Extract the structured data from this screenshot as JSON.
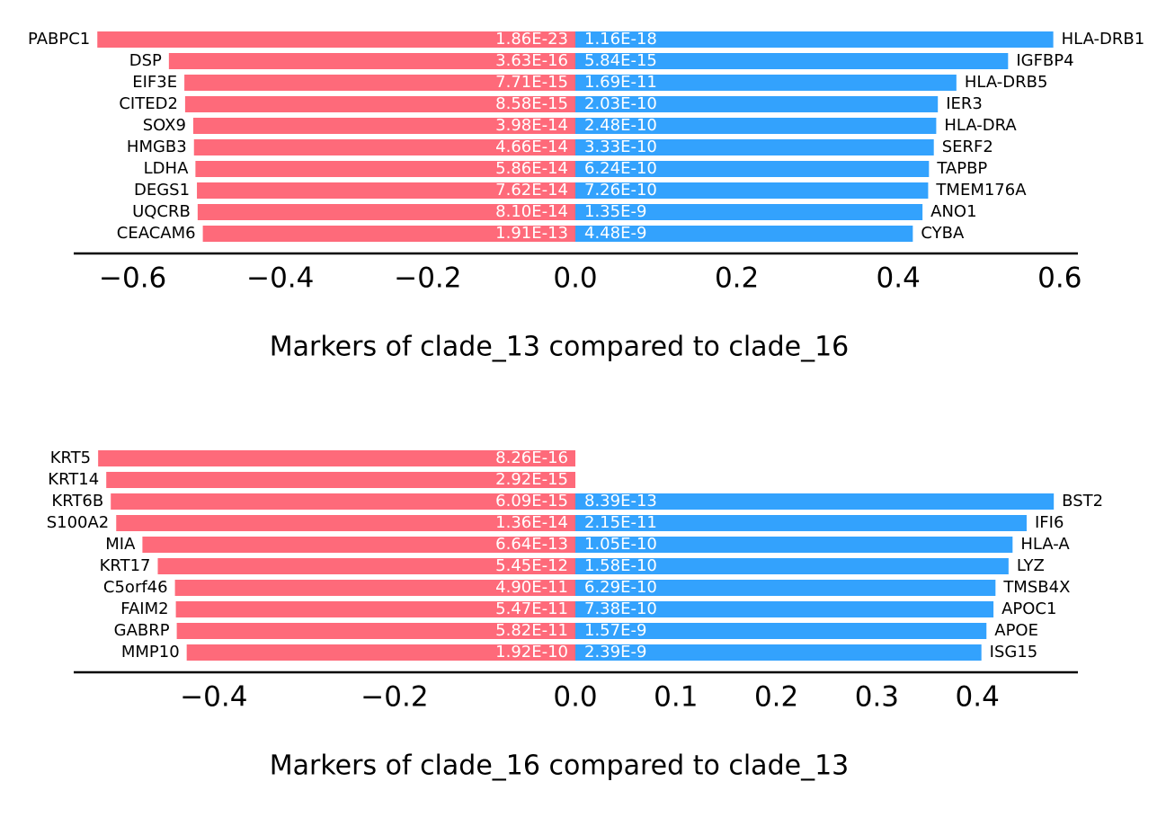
{
  "chart_data": [
    {
      "type": "diverging-bar",
      "title": "Markers of clade_13 compared to clade_16",
      "series": [
        {
          "color": "#fe6a7a",
          "xlim": [
            -0.68,
            0
          ],
          "xticks": [
            {
              "value": -0.6,
              "label": "−0.6"
            },
            {
              "value": -0.4,
              "label": "−0.4"
            },
            {
              "value": -0.2,
              "label": "−0.2"
            },
            {
              "value": 0,
              "label": "0.0"
            }
          ],
          "labels": [
            "PABPC1",
            "DSP",
            "EIF3E",
            "CITED2",
            "SOX9",
            "HMGB3",
            "LDHA",
            "DEGS1",
            "UQCRB",
            "CEACAM6"
          ],
          "values": [
            -0.648,
            -0.551,
            -0.53,
            -0.529,
            -0.518,
            -0.517,
            -0.515,
            -0.513,
            -0.512,
            -0.505
          ],
          "pvalue_labels": [
            "1.86E-23",
            "3.63E-16",
            "7.71E-15",
            "8.58E-15",
            "3.98E-14",
            "4.66E-14",
            "5.86E-14",
            "7.62E-14",
            "8.10E-14",
            "1.91E-13"
          ]
        },
        {
          "color": "#33a2fd",
          "xlim": [
            0,
            0.6225
          ],
          "xticks": [
            0.2,
            0.4,
            0.6
          ],
          "labels": [
            "HLA-DRB1",
            "IGFBP4",
            "HLA-DRB5",
            "IER3",
            "HLA-DRA",
            "SERF2",
            "TAPBP",
            "TMEM176A",
            "ANO1",
            "CYBA"
          ],
          "values": [
            0.592,
            0.536,
            0.472,
            0.449,
            0.447,
            0.444,
            0.438,
            0.437,
            0.43,
            0.418
          ],
          "pvalue_labels": [
            "1.16E-18",
            "5.84E-15",
            "1.69E-11",
            "2.03E-10",
            "2.48E-10",
            "3.33E-10",
            "6.24E-10",
            "7.26E-10",
            "1.35E-9",
            "4.48E-9"
          ]
        }
      ]
    },
    {
      "type": "diverging-bar",
      "title": "Markers of clade_16 compared to clade_13",
      "series": [
        {
          "color": "#fe6a7a",
          "xlim": [
            -0.555,
            0
          ],
          "xticks": [
            {
              "value": -0.4,
              "label": "−0.4"
            },
            {
              "value": -0.2,
              "label": "−0.2"
            },
            {
              "value": 0,
              "label": "0.0"
            }
          ],
          "labels": [
            "KRT5",
            "KRT14",
            "KRT6B",
            "S100A2",
            "MIA",
            "KRT17",
            "C5orf46",
            "FAIM2",
            "GABRP",
            "MMP10"
          ],
          "values": [
            -0.528,
            -0.519,
            -0.514,
            -0.508,
            -0.479,
            -0.462,
            -0.443,
            -0.442,
            -0.441,
            -0.43
          ],
          "pvalue_labels": [
            "8.26E-16",
            "2.92E-15",
            "6.09E-15",
            "1.36E-14",
            "6.64E-13",
            "5.45E-12",
            "4.90E-11",
            "5.47E-11",
            "5.82E-11",
            "1.92E-10"
          ]
        },
        {
          "color": "#33a2fd",
          "xlim": [
            0,
            0.5
          ],
          "xticks": [
            0.1,
            0.2,
            0.3,
            0.4
          ],
          "labels": [
            null,
            null,
            "BST2",
            "IFI6",
            "HLA-A",
            "LYZ",
            "TMSB4X",
            "APOC1",
            "APOE",
            "ISG15"
          ],
          "values": [
            null,
            null,
            0.476,
            0.449,
            0.435,
            0.431,
            0.418,
            0.416,
            0.409,
            0.404
          ],
          "pvalue_labels": [
            null,
            null,
            "8.39E-13",
            "2.15E-11",
            "1.05E-10",
            "1.58E-10",
            "6.29E-10",
            "7.38E-10",
            "1.57E-9",
            "2.39E-9"
          ]
        }
      ]
    }
  ]
}
